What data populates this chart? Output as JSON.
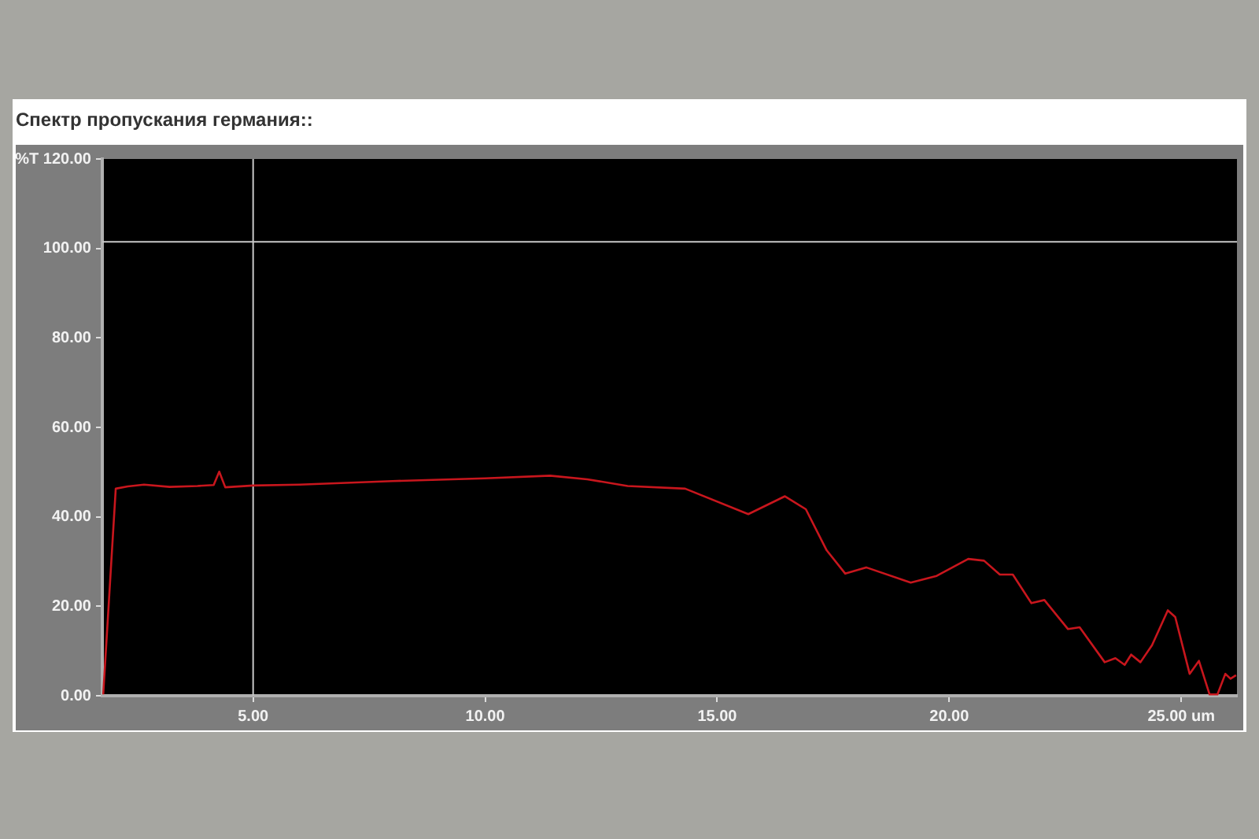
{
  "chart_data": {
    "type": "line",
    "title": "Спектр пропускания германия::",
    "series": [
      {
        "color": "#c8161d",
        "x": [
          1.77,
          2.04,
          2.3,
          2.65,
          3.2,
          3.8,
          4.15,
          4.27,
          4.4,
          5,
          6,
          7,
          8,
          9,
          10,
          11.4,
          12.2,
          13.07,
          14.31,
          15.67,
          16.46,
          16.91,
          17.36,
          17.76,
          18.21,
          19.17,
          19.73,
          20.41,
          20.75,
          21.09,
          21.37,
          21.77,
          22.05,
          22.56,
          22.81,
          23.35,
          23.58,
          23.78,
          23.92,
          24.12,
          24.37,
          24.71,
          24.87,
          25.18,
          25.38,
          25.61,
          25.78,
          25.95,
          26.06,
          26.18
        ],
        "values": [
          0.3,
          46.3,
          46.8,
          47.2,
          46.7,
          46.9,
          47.1,
          50.1,
          46.6,
          47.0,
          47.2,
          47.6,
          48.0,
          48.3,
          48.6,
          49.2,
          48.4,
          46.9,
          46.3,
          40.6,
          44.6,
          41.7,
          32.5,
          27.3,
          28.7,
          25.3,
          26.8,
          30.6,
          30.2,
          27.1,
          27.1,
          20.7,
          21.4,
          14.9,
          15.3,
          7.5,
          8.4,
          6.9,
          9.2,
          7.5,
          11.3,
          19.1,
          17.6,
          4.9,
          7.8,
          0.3,
          0.3,
          4.9,
          3.8,
          4.6
        ]
      }
    ],
    "xlim": [
      1.75,
      26.2
    ],
    "xticks": [
      {
        "value": 5,
        "label": "5.00"
      },
      {
        "value": 10,
        "label": "10.00"
      },
      {
        "value": 15,
        "label": "15.00"
      },
      {
        "value": 20,
        "label": "20.00"
      },
      {
        "value": 25,
        "label": "25.00 um"
      }
    ],
    "ylim": [
      0,
      120
    ],
    "yticks": [
      {
        "value": 0,
        "label": "0.00"
      },
      {
        "value": 20,
        "label": "20.00"
      },
      {
        "value": 40,
        "label": "40.00"
      },
      {
        "value": 60,
        "label": "60.00"
      },
      {
        "value": 80,
        "label": "80.00"
      },
      {
        "value": 100,
        "label": "100.00"
      },
      {
        "value": 120,
        "label": "%T 120.00"
      }
    ],
    "ref_lines": [
      {
        "axis": "x",
        "value": 5,
        "color": "#c8c8c8"
      },
      {
        "axis": "y",
        "value": 101.5,
        "color": "#c8c8c8"
      }
    ],
    "grid": false,
    "legend": false,
    "marker": "none",
    "line_style": "solid"
  }
}
